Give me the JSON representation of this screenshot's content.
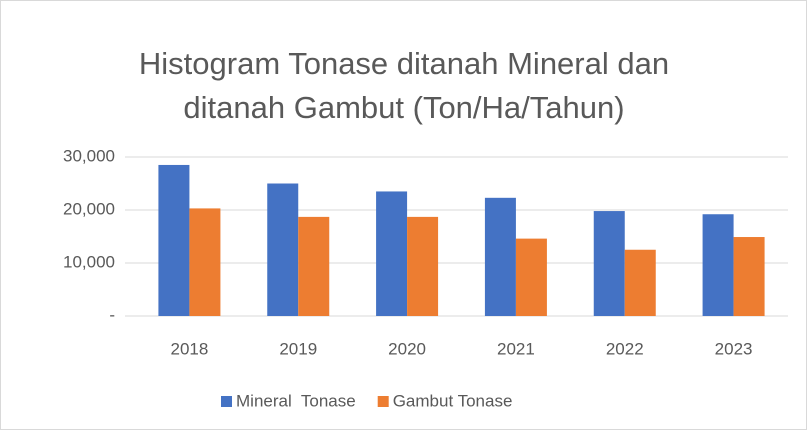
{
  "chart_data": {
    "type": "bar",
    "title": "Histogram Tonase ditanah Mineral dan ditanah Gambut (Ton/Ha/Tahun)",
    "categories": [
      "2018",
      "2019",
      "2020",
      "2021",
      "2022",
      "2023"
    ],
    "series": [
      {
        "name": "Mineral  Tonase",
        "color": "#4472c4",
        "values": [
          28500,
          25000,
          23500,
          22300,
          19800,
          19200
        ]
      },
      {
        "name": "Gambut Tonase",
        "color": "#ed7d31",
        "values": [
          20300,
          18700,
          18700,
          14600,
          12500,
          14900
        ]
      }
    ],
    "ylim": [
      0,
      30000
    ],
    "yticks": [
      {
        "value": 0,
        "label": "-"
      },
      {
        "value": 10000,
        "label": "10,000"
      },
      {
        "value": 20000,
        "label": "20,000"
      },
      {
        "value": 30000,
        "label": "30,000"
      }
    ],
    "grid": true,
    "legend": "bottom"
  }
}
